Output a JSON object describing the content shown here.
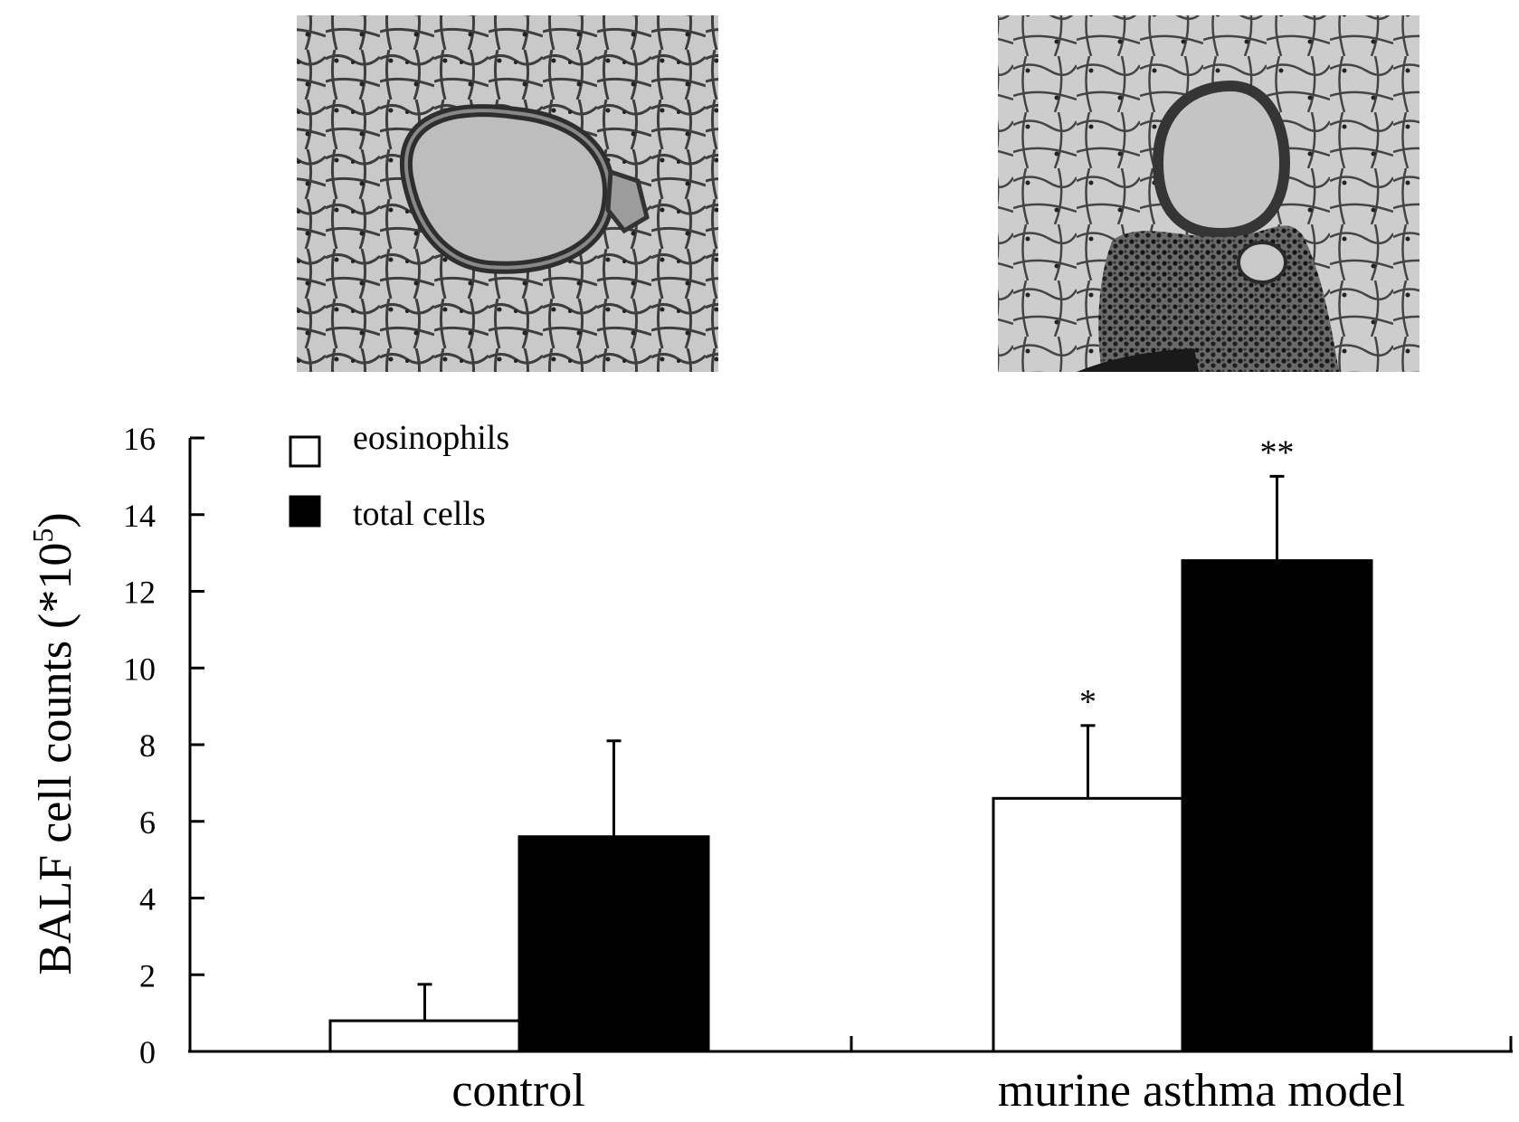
{
  "chart_data": {
    "type": "bar",
    "ylabel": "BALF cell counts (*10",
    "ylabel_sup": "5",
    "ylabel_end": ")",
    "ylim": [
      0,
      16
    ],
    "yticks": [
      "0",
      "2",
      "4",
      "6",
      "8",
      "10",
      "12",
      "14",
      "16"
    ],
    "categories": [
      "control",
      "murine asthma model"
    ],
    "series": [
      {
        "name": "eosinophils",
        "fill": "#ffffff",
        "values": [
          0.8,
          6.6
        ],
        "errors": [
          0.95,
          1.9
        ]
      },
      {
        "name": "total cells",
        "fill": "#000000",
        "values": [
          5.6,
          12.8
        ],
        "errors": [
          2.5,
          2.2
        ]
      }
    ],
    "significance": [
      {
        "series": 0,
        "category": 1,
        "label": "*"
      },
      {
        "series": 1,
        "category": 1,
        "label": "**"
      }
    ],
    "legend_position": "top-left"
  },
  "micrographs": [
    {
      "name": "control-lung-histology",
      "condition": "control"
    },
    {
      "name": "asthma-lung-histology",
      "condition": "murine asthma model"
    }
  ]
}
